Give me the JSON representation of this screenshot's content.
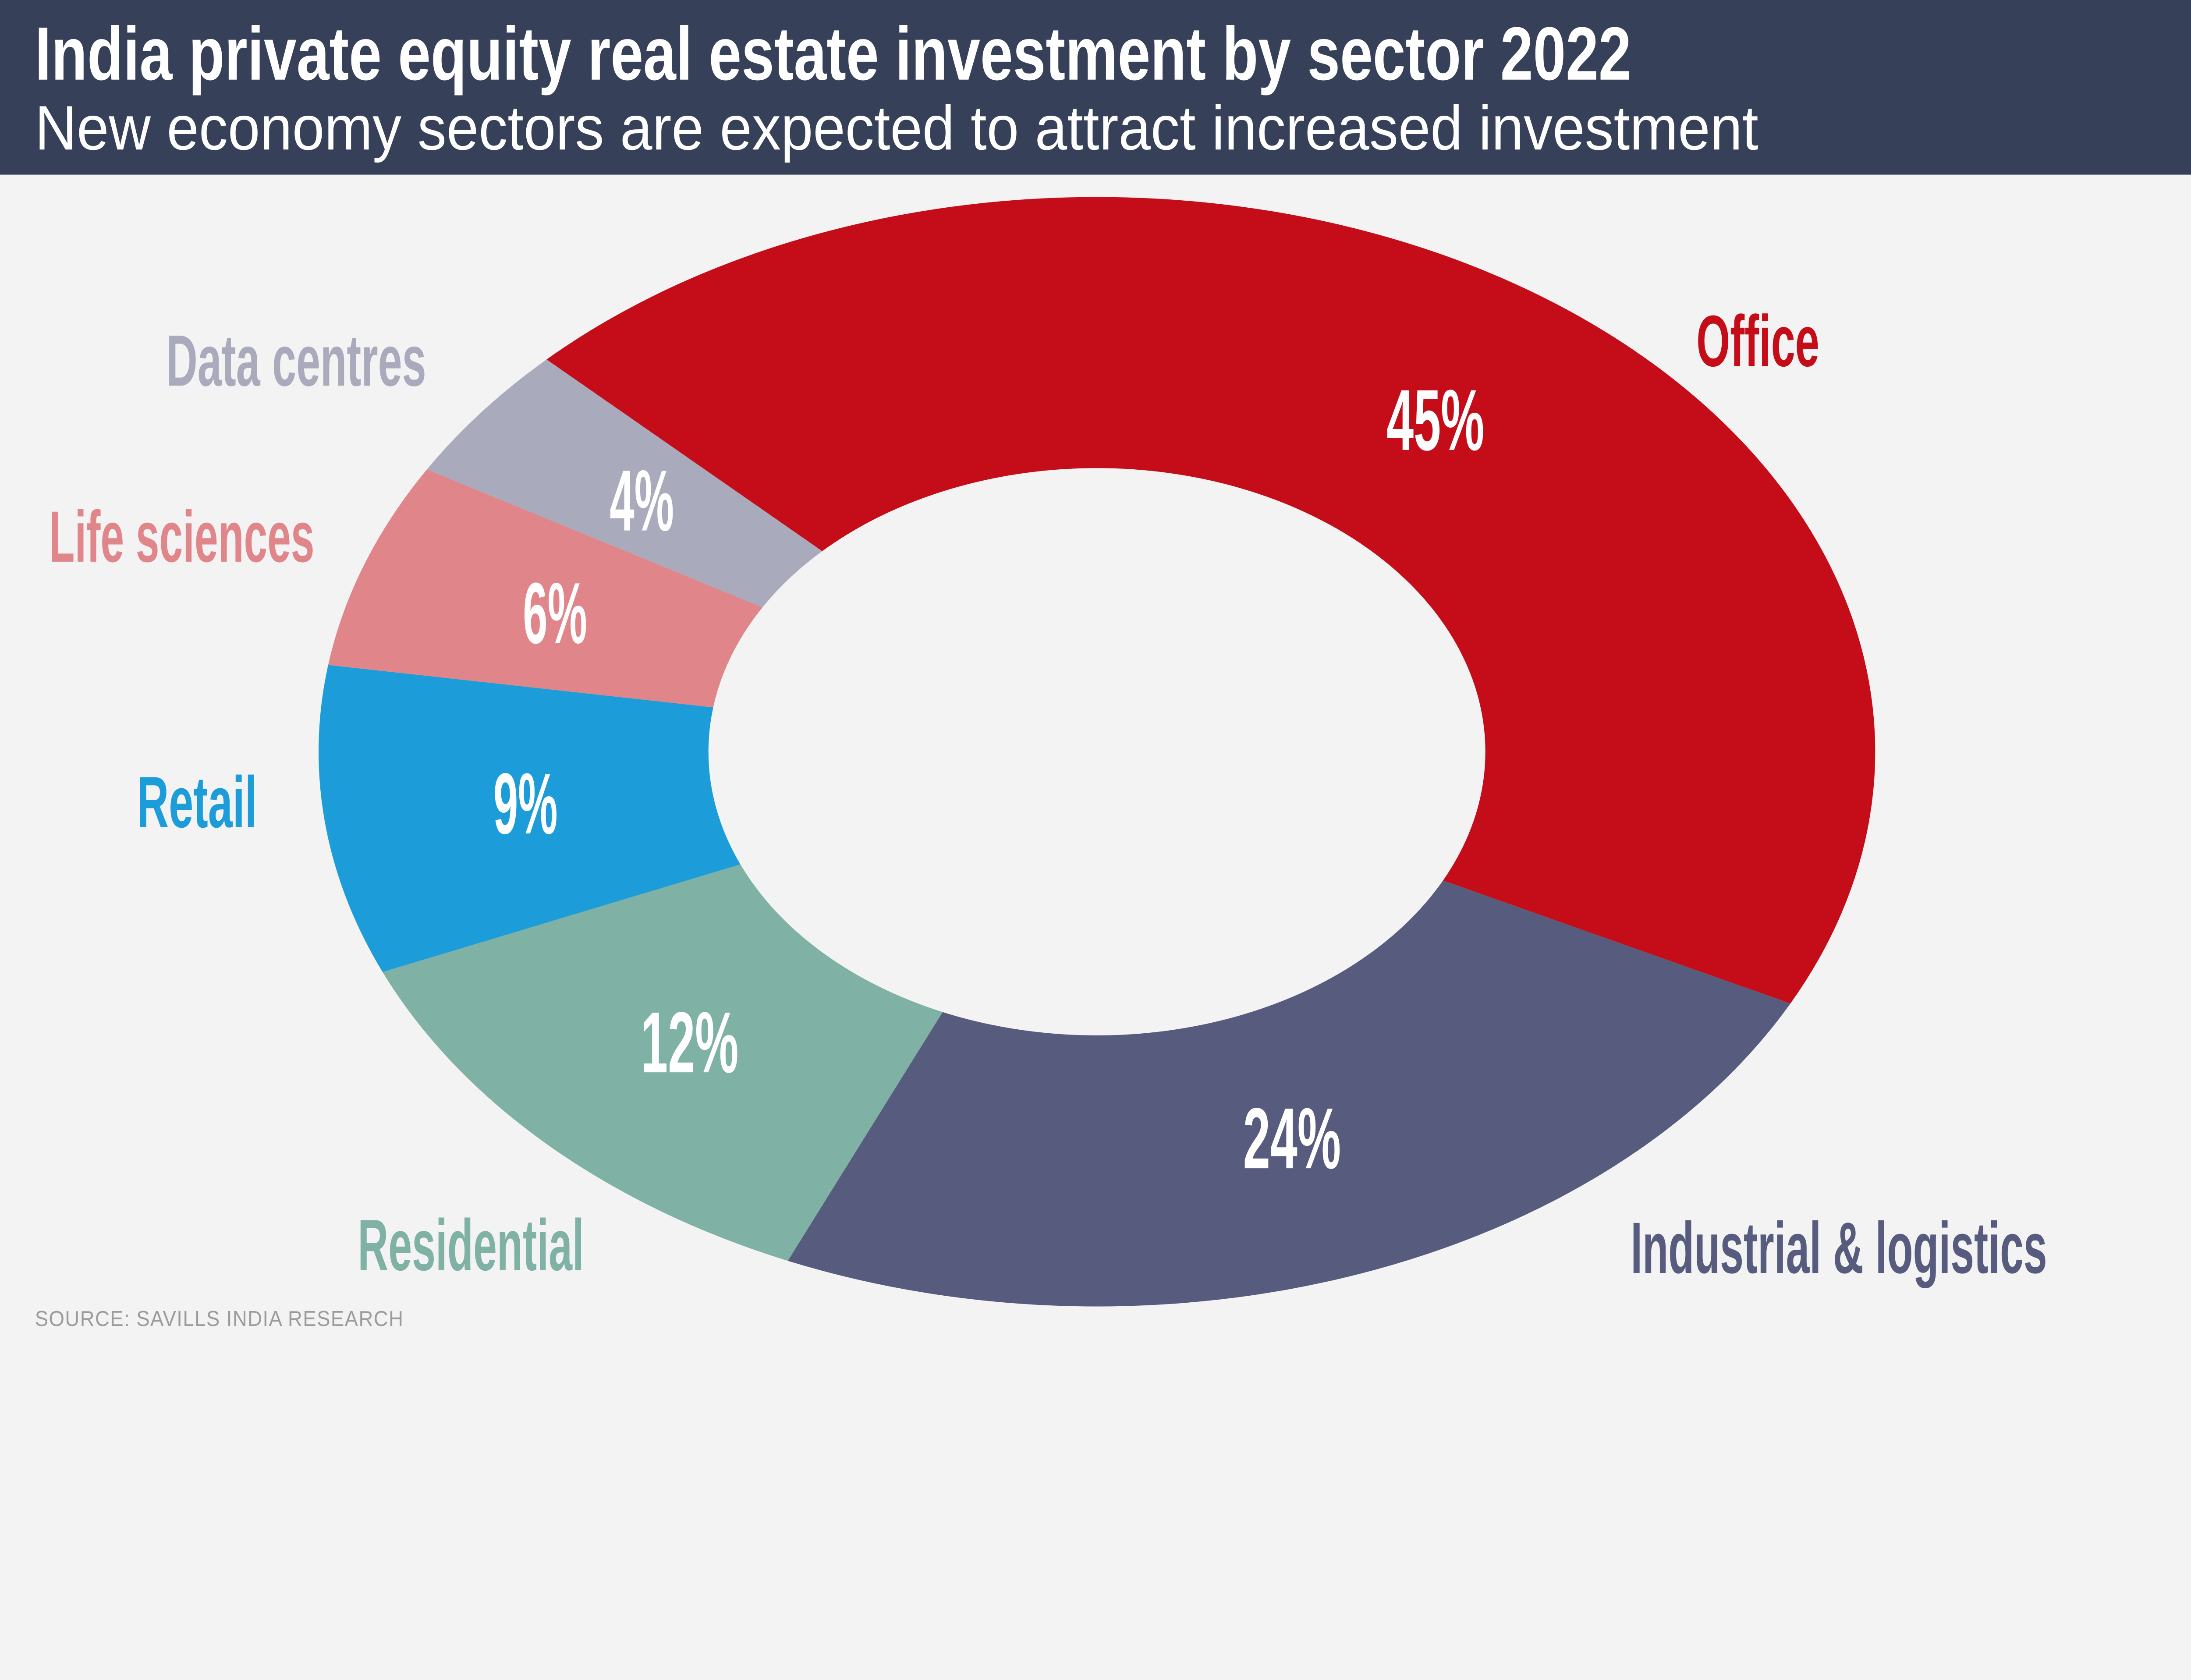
{
  "header": {
    "title": "India private equity real estate investment by sector 2022",
    "subtitle": "New economy sectors are expected to attract increased investment",
    "bg_color": "#364058",
    "text_color": "#FFFFFF"
  },
  "source": {
    "text": "SOURCE: SAVILLS INDIA RESEARCH",
    "color": "#9B9B9B"
  },
  "canvas": {
    "background": "#F3F3F4",
    "hole_color": "#F4F4F5"
  },
  "chart_data": {
    "type": "pie",
    "subtype": "donut",
    "title": "India private equity real estate investment by sector 2022",
    "subtitle": "New economy sectors are expected to attract increased investment",
    "source": "SOURCE: SAVILLS INDIA RESEARCH",
    "start_angle_deg": 225,
    "direction": "clockwise",
    "hole_ratio": 0.5,
    "legend_position": "labels-around-donut",
    "categories": [
      "Office",
      "Industrial & logistics",
      "Residential",
      "Retail",
      "Life sciences",
      "Data centres"
    ],
    "values": [
      45,
      24,
      12,
      9,
      6,
      4
    ],
    "slices": [
      {
        "label": "Office",
        "value": 45,
        "pct_label": "45%",
        "color": "#C40D18"
      },
      {
        "label": "Industrial & logistics",
        "value": 24,
        "pct_label": "24%",
        "color": "#575B7D"
      },
      {
        "label": "Residential",
        "value": 12,
        "pct_label": "12%",
        "color": "#7FB2A4"
      },
      {
        "label": "Retail",
        "value": 9,
        "pct_label": "9%",
        "color": "#1C9DD9"
      },
      {
        "label": "Life sciences",
        "value": 6,
        "pct_label": "6%",
        "color": "#E0858A"
      },
      {
        "label": "Data centres",
        "value": 4,
        "pct_label": "4%",
        "color": "#A9ABBD"
      }
    ]
  }
}
